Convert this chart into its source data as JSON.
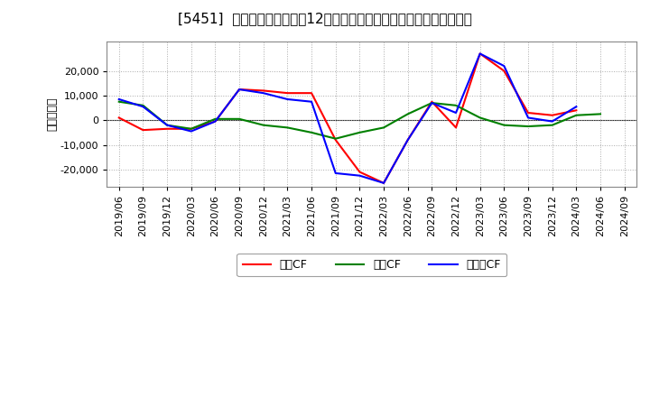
{
  "title": "[5451]  キャッシュフローの12か月移動合計の対前年同期増減額の推移",
  "ylabel": "（百万円）",
  "background_color": "#ffffff",
  "plot_bg_color": "#ffffff",
  "grid_color": "#aaaaaa",
  "title_fontsize": 11,
  "label_fontsize": 9,
  "tick_fontsize": 8,
  "labels": [
    "営業CF",
    "投資CF",
    "フリーCF"
  ],
  "colors": [
    "#ff0000",
    "#008000",
    "#0000ff"
  ],
  "x_labels": [
    "2019/06",
    "2019/09",
    "2019/12",
    "2020/03",
    "2020/06",
    "2020/09",
    "2020/12",
    "2021/03",
    "2021/06",
    "2021/09",
    "2021/12",
    "2022/03",
    "2022/06",
    "2022/09",
    "2022/12",
    "2023/03",
    "2023/06",
    "2023/09",
    "2023/12",
    "2024/03",
    "2024/06",
    "2024/09"
  ],
  "operating_cf": [
    1000,
    -4000,
    -3500,
    -3500,
    -500,
    12500,
    12000,
    11000,
    11000,
    -8000,
    -21000,
    -25500,
    -8000,
    7500,
    -3000,
    27000,
    20000,
    3000,
    2000,
    4000,
    null,
    null
  ],
  "investing_cf": [
    7500,
    6000,
    -2000,
    -3500,
    500,
    500,
    -2000,
    -3000,
    -5000,
    -7500,
    -5000,
    -3000,
    2500,
    7000,
    6000,
    1000,
    -2000,
    -2500,
    -2000,
    2000,
    2500,
    null
  ],
  "free_cf": [
    8500,
    5500,
    -2000,
    -4500,
    -500,
    12500,
    11000,
    8500,
    7500,
    -21500,
    -22500,
    -25500,
    -8000,
    7000,
    3000,
    27000,
    22000,
    1000,
    -500,
    5500,
    null,
    null
  ],
  "ylim": [
    -27000,
    32000
  ],
  "yticks": [
    -20000,
    -10000,
    0,
    10000,
    20000
  ]
}
